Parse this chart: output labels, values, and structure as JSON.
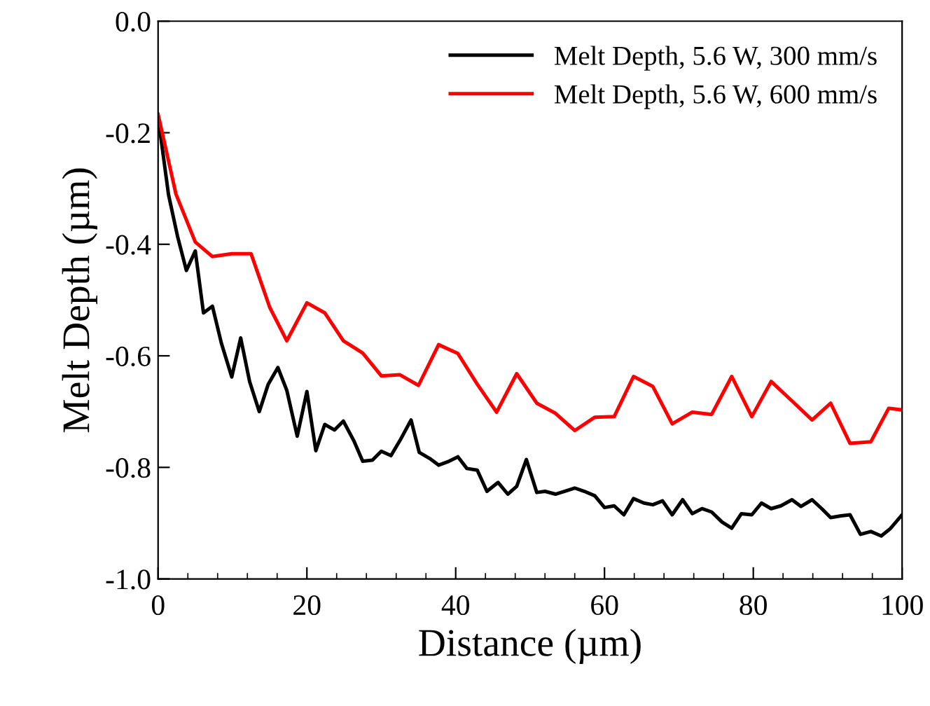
{
  "chart_data": {
    "type": "line",
    "xlabel": "Distance (µm)",
    "ylabel": "Melt Depth (µm)",
    "xlim": [
      0,
      100
    ],
    "xticks": [
      0,
      20,
      40,
      60,
      80,
      100
    ],
    "ylim": [
      -1.0,
      0.0
    ],
    "yticks": [
      {
        "value": 0.0,
        "label": "0.0"
      },
      {
        "value": -0.2,
        "label": "-0.2"
      },
      {
        "value": -0.4,
        "label": "-0.4"
      },
      {
        "value": -0.6,
        "label": "-0.6"
      },
      {
        "value": -0.8,
        "label": "-0.8"
      },
      {
        "value": -1.0,
        "label": "-1.0"
      }
    ],
    "grid": false,
    "legend": "top right",
    "marker": "none",
    "line_style": "solid",
    "series": [
      {
        "name": "Melt Depth, 5.6 W, 300 mm/s",
        "color": "#000000",
        "x": [
          0,
          1.4,
          2.6,
          3.8,
          5,
          6.1,
          7.3,
          8.5,
          9.9,
          11.1,
          12.3,
          13.6,
          14.8,
          16.1,
          17.3,
          18.7,
          20,
          21.2,
          22.4,
          23.7,
          24.9,
          26.3,
          27.5,
          28.8,
          30,
          31.3,
          32.5,
          34,
          35.1,
          36.5,
          37.7,
          39.1,
          40.3,
          41.5,
          42.9,
          44.2,
          45.7,
          47,
          48.2,
          49.5,
          50.9,
          52,
          53.4,
          54.6,
          56,
          57.3,
          58.7,
          60,
          61.3,
          62.6,
          63.9,
          65.3,
          66.5,
          67.8,
          69.1,
          70.5,
          71.8,
          73.1,
          74.4,
          75.8,
          77.1,
          78.4,
          79.8,
          81.1,
          82.4,
          83.7,
          85.2,
          86.4,
          87.9,
          89.2,
          90.4,
          91.8,
          93,
          94.4,
          95.8,
          97.2,
          98.4,
          100
        ],
        "values": [
          -0.172,
          -0.311,
          -0.385,
          -0.447,
          -0.412,
          -0.523,
          -0.511,
          -0.577,
          -0.638,
          -0.568,
          -0.646,
          -0.7,
          -0.651,
          -0.621,
          -0.662,
          -0.744,
          -0.664,
          -0.77,
          -0.723,
          -0.733,
          -0.717,
          -0.752,
          -0.789,
          -0.787,
          -0.771,
          -0.779,
          -0.752,
          -0.715,
          -0.773,
          -0.784,
          -0.796,
          -0.789,
          -0.781,
          -0.802,
          -0.805,
          -0.843,
          -0.827,
          -0.848,
          -0.834,
          -0.786,
          -0.845,
          -0.843,
          -0.848,
          -0.843,
          -0.837,
          -0.843,
          -0.851,
          -0.872,
          -0.869,
          -0.885,
          -0.856,
          -0.864,
          -0.867,
          -0.86,
          -0.885,
          -0.858,
          -0.883,
          -0.874,
          -0.88,
          -0.898,
          -0.909,
          -0.883,
          -0.885,
          -0.864,
          -0.874,
          -0.869,
          -0.858,
          -0.87,
          -0.858,
          -0.874,
          -0.89,
          -0.887,
          -0.885,
          -0.92,
          -0.915,
          -0.923,
          -0.91,
          -0.885
        ]
      },
      {
        "name": "Melt Depth, 5.6 W, 600 mm/s",
        "color": "#ff0000",
        "x": [
          0,
          2.4,
          5,
          7.3,
          9.9,
          12.5,
          15,
          17.3,
          20,
          22.4,
          24.9,
          27.5,
          30,
          32.5,
          35,
          37.7,
          40.3,
          42.9,
          45.5,
          48.2,
          50.9,
          53.4,
          56,
          58.7,
          61.3,
          63.9,
          66.5,
          69.1,
          71.8,
          74.4,
          77.1,
          79.8,
          82.4,
          85.2,
          87.9,
          90.4,
          93,
          95.8,
          98.2,
          100
        ],
        "values": [
          -0.167,
          -0.31,
          -0.396,
          -0.422,
          -0.417,
          -0.417,
          -0.513,
          -0.573,
          -0.505,
          -0.523,
          -0.573,
          -0.595,
          -0.636,
          -0.634,
          -0.653,
          -0.58,
          -0.596,
          -0.651,
          -0.701,
          -0.632,
          -0.685,
          -0.703,
          -0.734,
          -0.71,
          -0.709,
          -0.637,
          -0.655,
          -0.722,
          -0.701,
          -0.705,
          -0.637,
          -0.709,
          -0.646,
          -0.681,
          -0.715,
          -0.685,
          -0.757,
          -0.754,
          -0.694,
          -0.697
        ]
      }
    ]
  }
}
